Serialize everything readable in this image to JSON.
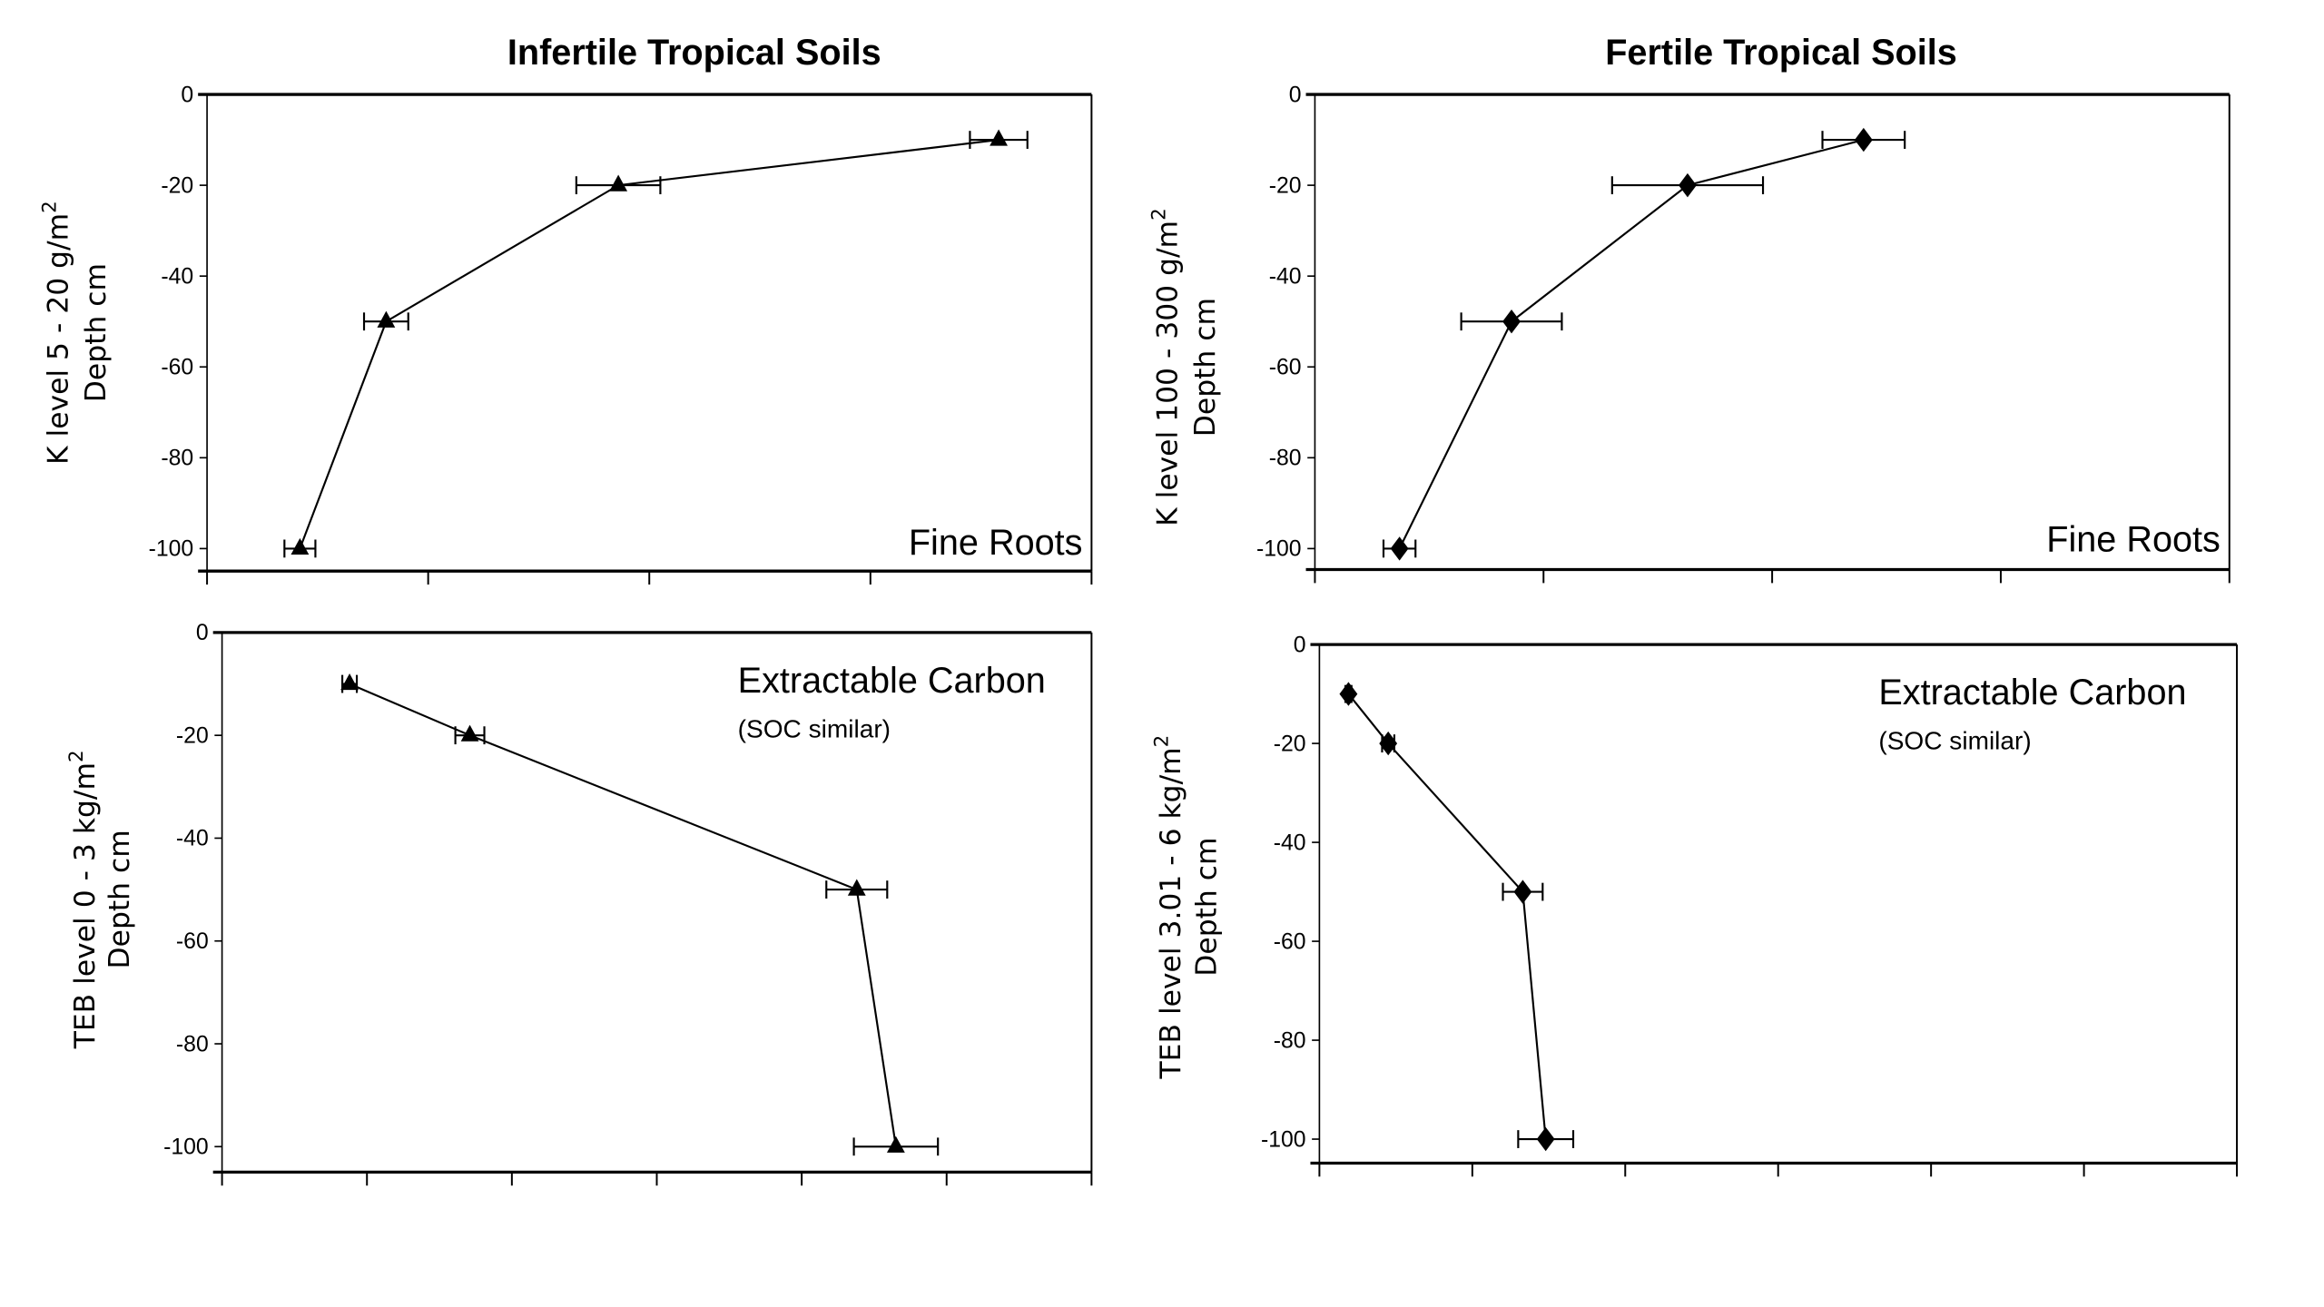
{
  "chart_data": [
    {
      "type": "line",
      "title": "Infertile Tropical Soils",
      "ylabel": [
        "K level 5 - 20 g/m",
        "Depth cm"
      ],
      "ylabel_superscript": "2",
      "annotation": "Fine Roots",
      "annotation_sub": "",
      "marker": "triangle",
      "yticks": [
        "0",
        "-20",
        "-40",
        "-60",
        "-80",
        "-100"
      ],
      "ylim": [
        -105,
        0
      ],
      "xlim": [
        0,
        4
      ],
      "x_ticks_count": 4,
      "points": [
        {
          "x": 3.58,
          "y": -10,
          "err": 0.13
        },
        {
          "x": 1.86,
          "y": -20,
          "err": 0.19
        },
        {
          "x": 0.81,
          "y": -50,
          "err": 0.1
        },
        {
          "x": 0.42,
          "y": -100,
          "err": 0.07
        }
      ]
    },
    {
      "type": "line",
      "title": "Fertile Tropical Soils",
      "ylabel": [
        "K level 100 - 300 g/m",
        "Depth cm"
      ],
      "ylabel_superscript": "2",
      "annotation": "Fine Roots",
      "annotation_sub": "",
      "marker": "diamond",
      "yticks": [
        "0",
        "-20",
        "-40",
        "-60",
        "-80",
        "-100"
      ],
      "ylim": [
        -105,
        0
      ],
      "xlim": [
        0,
        4
      ],
      "x_ticks_count": 4,
      "points": [
        {
          "x": 2.4,
          "y": -10,
          "err": 0.18
        },
        {
          "x": 1.63,
          "y": -20,
          "err": 0.33
        },
        {
          "x": 0.86,
          "y": -50,
          "err": 0.22
        },
        {
          "x": 0.37,
          "y": -100,
          "err": 0.07
        }
      ]
    },
    {
      "type": "line",
      "title": "",
      "ylabel": [
        "TEB level 0 - 3 kg/m",
        "Depth cm"
      ],
      "ylabel_superscript": "2",
      "annotation": "Extractable Carbon",
      "annotation_sub": "(SOC similar)",
      "marker": "triangle",
      "yticks": [
        "0",
        "-20",
        "-40",
        "-60",
        "-80",
        "-100"
      ],
      "ylim": [
        -105,
        0
      ],
      "xlim": [
        0,
        6
      ],
      "x_ticks_count": 6,
      "points": [
        {
          "x": 0.88,
          "y": -10,
          "err": 0.05
        },
        {
          "x": 1.71,
          "y": -20,
          "err": 0.1
        },
        {
          "x": 4.38,
          "y": -50,
          "err": 0.21
        },
        {
          "x": 4.65,
          "y": -100,
          "err": 0.29
        }
      ]
    },
    {
      "type": "line",
      "title": "",
      "ylabel": [
        "TEB level 3.01 - 6 kg/m",
        "Depth cm"
      ],
      "ylabel_superscript": "2",
      "annotation": "Extractable Carbon",
      "annotation_sub": "(SOC similar)",
      "marker": "diamond",
      "yticks": [
        "0",
        "-20",
        "-40",
        "-60",
        "-80",
        "-100"
      ],
      "ylim": [
        -105,
        0
      ],
      "xlim": [
        0,
        6
      ],
      "x_ticks_count": 6,
      "points": [
        {
          "x": 0.19,
          "y": -10,
          "err": 0.02
        },
        {
          "x": 0.45,
          "y": -20,
          "err": 0.04
        },
        {
          "x": 1.33,
          "y": -50,
          "err": 0.13
        },
        {
          "x": 1.48,
          "y": -100,
          "err": 0.18
        }
      ]
    }
  ]
}
